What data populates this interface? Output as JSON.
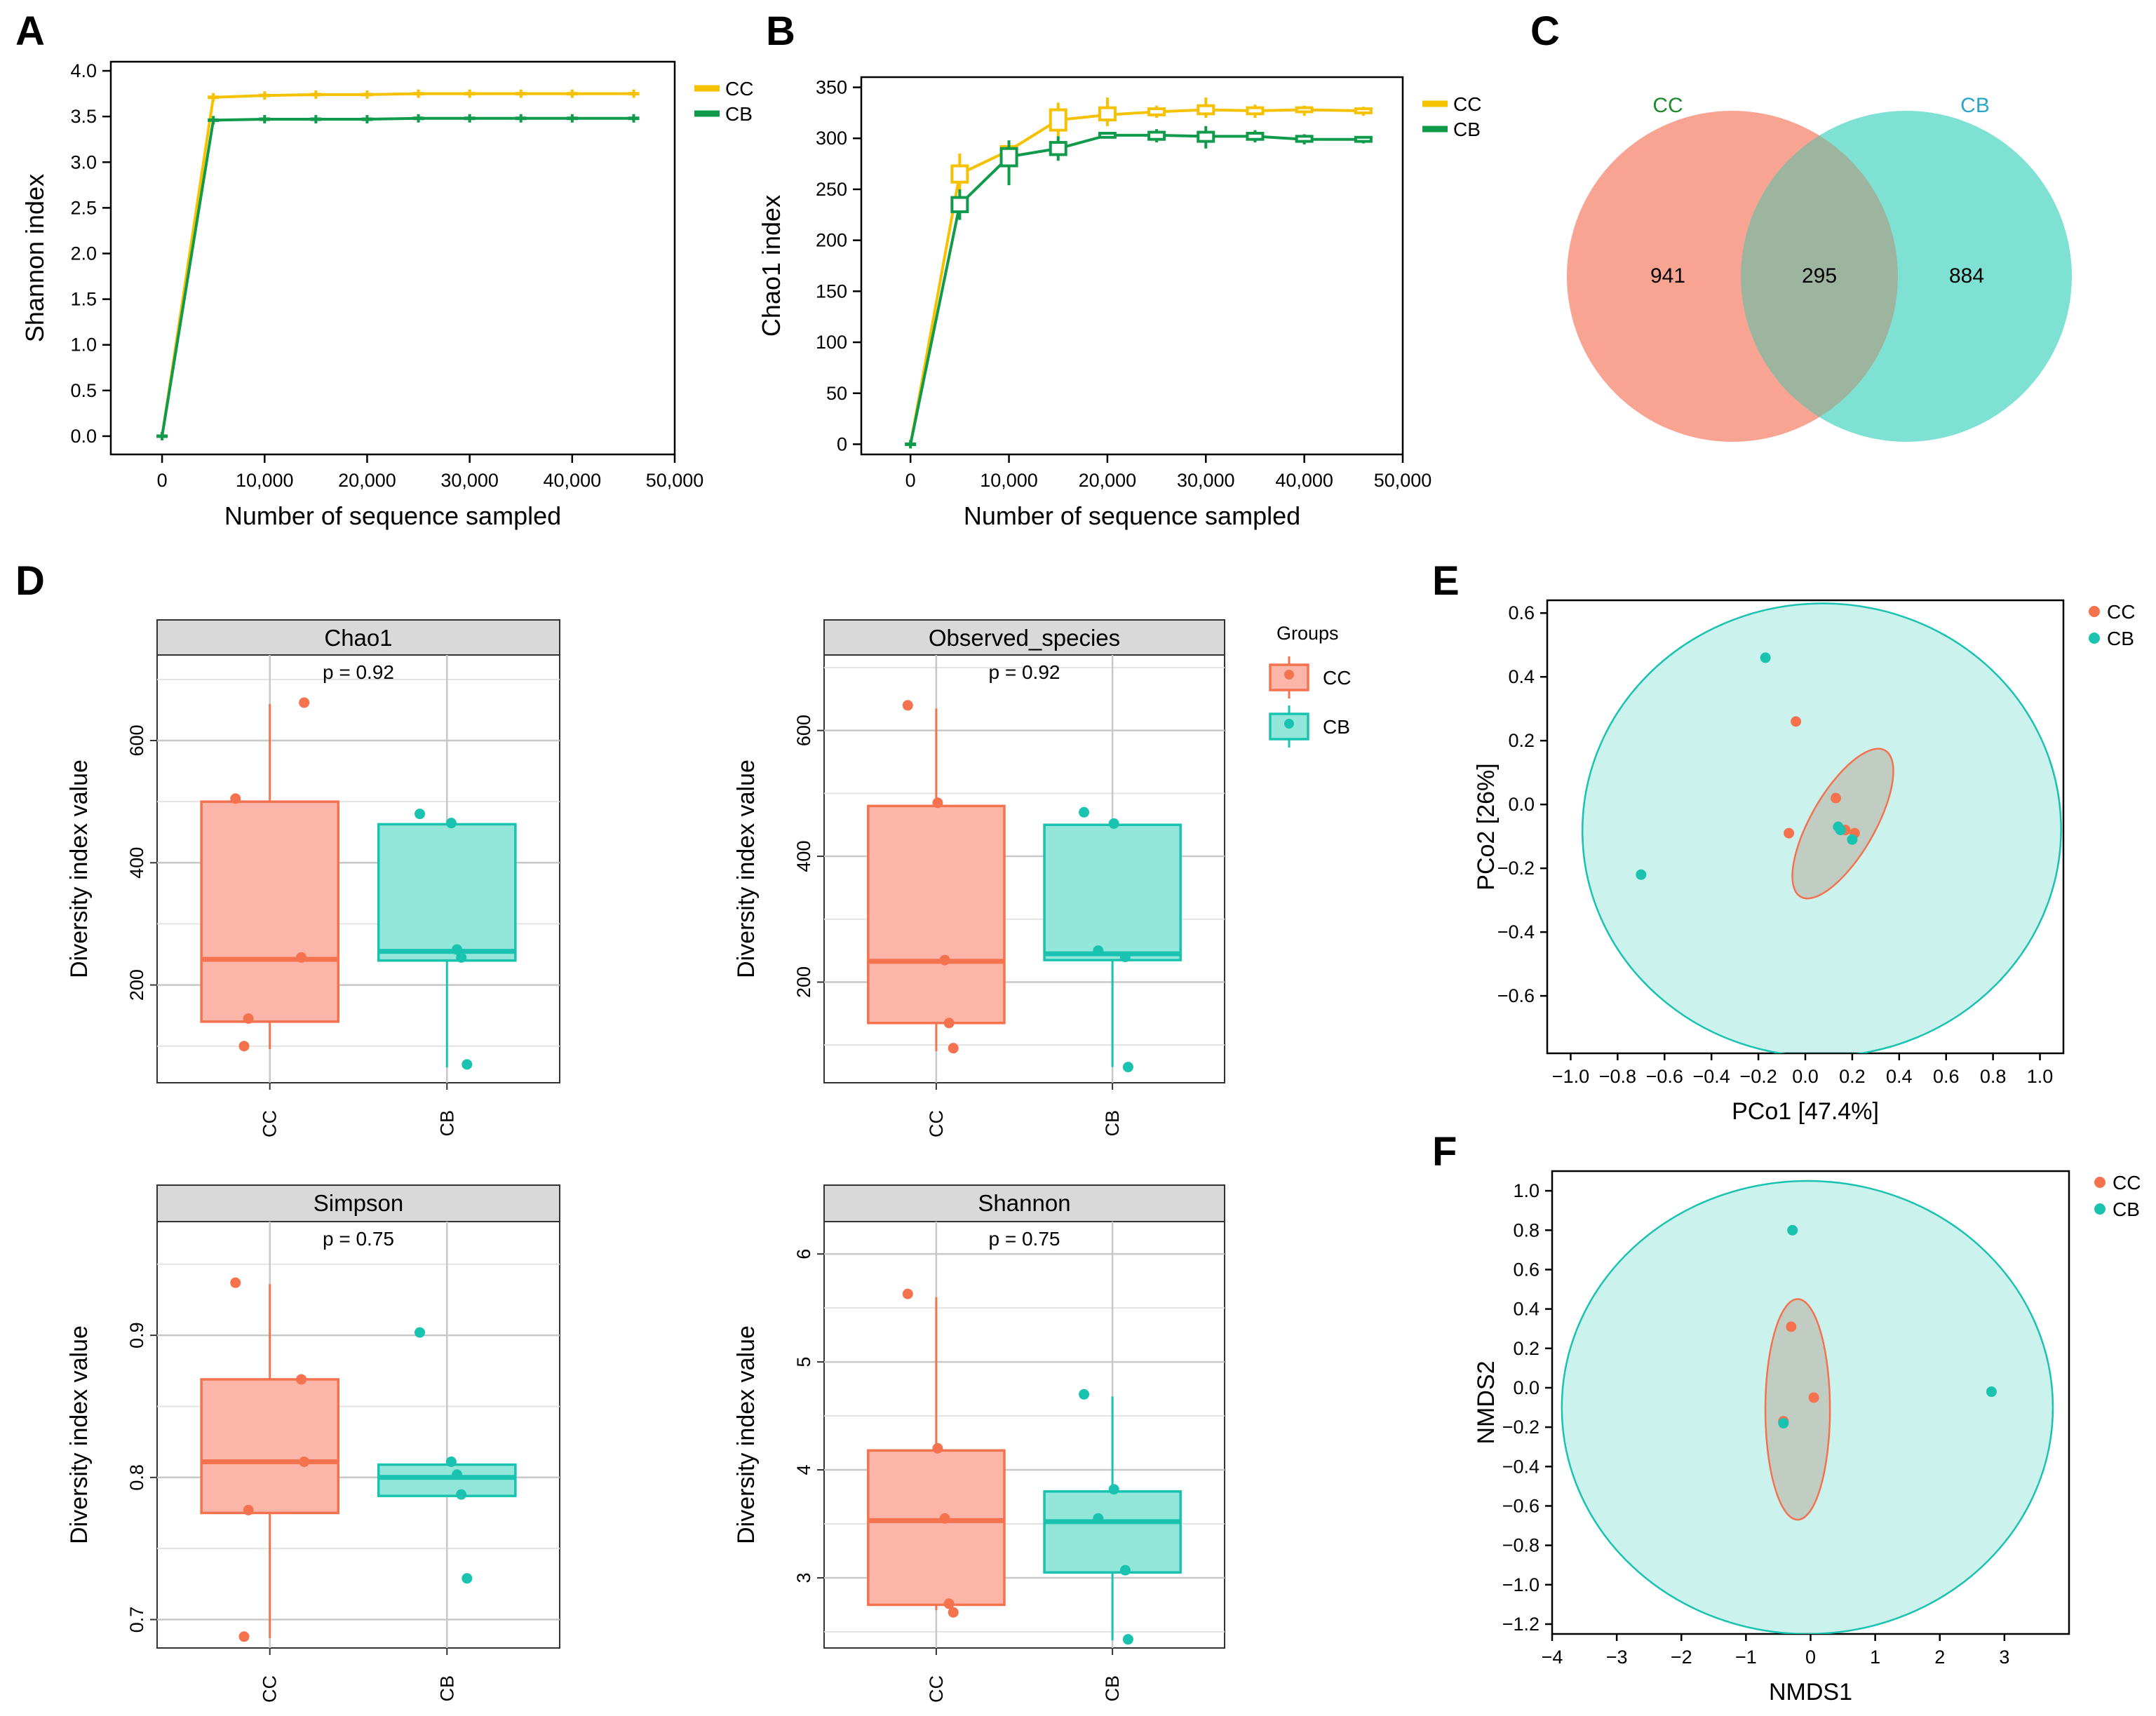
{
  "colors": {
    "cc_line": "#F5C100",
    "cb_line": "#109A4C",
    "cc_point": "#F4724E",
    "cb_point": "#19C3B0",
    "cc_box_fill": "#FCB5A9",
    "cb_box_fill": "#93E6DA",
    "venn_cc": "#F9A392",
    "venn_cb": "#7FE1D4",
    "venn_overlap": "#9DB59F",
    "strip": "#D9D9D9",
    "grid": "#C8C8C8"
  },
  "panel_labels": {
    "a": "A",
    "b": "B",
    "c": "C",
    "d": "D",
    "e": "E",
    "f": "F"
  },
  "chart_data": [
    {
      "id": "A",
      "type": "line",
      "title": "",
      "xlabel": "Number of sequence sampled",
      "ylabel": "Shannon index",
      "xlim": [
        -5000,
        50000
      ],
      "ylim": [
        -0.2,
        4.1
      ],
      "xticks": [
        0,
        10000,
        20000,
        30000,
        40000,
        50000
      ],
      "xticklabels": [
        "0",
        "10,000",
        "20,000",
        "30,000",
        "40,000",
        "50,000"
      ],
      "yticks": [
        0,
        0.5,
        1,
        1.5,
        2,
        2.5,
        3,
        3.5,
        4
      ],
      "yticklabels": [
        "0.0",
        "0.5",
        "1.0",
        "1.5",
        "2.0",
        "2.5",
        "3.0",
        "3.5",
        "4.0"
      ],
      "legend": "right-top",
      "series": [
        {
          "name": "CC",
          "color_key": "cc_line",
          "x": [
            0,
            5000,
            10000,
            15000,
            20000,
            25000,
            30000,
            35000,
            40000,
            46000
          ],
          "y": [
            0,
            3.71,
            3.73,
            3.74,
            3.74,
            3.75,
            3.75,
            3.75,
            3.75,
            3.75
          ]
        },
        {
          "name": "CB",
          "color_key": "cb_line",
          "x": [
            0,
            5000,
            10000,
            15000,
            20000,
            25000,
            30000,
            35000,
            40000,
            46000
          ],
          "y": [
            0,
            3.46,
            3.47,
            3.47,
            3.47,
            3.48,
            3.48,
            3.48,
            3.48,
            3.48
          ]
        }
      ]
    },
    {
      "id": "B",
      "type": "line",
      "title": "",
      "xlabel": "Number of sequence sampled",
      "ylabel": "Chao1 index",
      "xlim": [
        -5000,
        50000
      ],
      "ylim": [
        -10,
        360
      ],
      "xticks": [
        0,
        10000,
        20000,
        30000,
        40000,
        50000
      ],
      "xticklabels": [
        "0",
        "10,000",
        "20,000",
        "30,000",
        "40,000",
        "50,000"
      ],
      "yticks": [
        0,
        50,
        100,
        150,
        200,
        250,
        300,
        350
      ],
      "yticklabels": [
        "0",
        "50",
        "100",
        "150",
        "200",
        "250",
        "300",
        "350"
      ],
      "legend": "right-top",
      "series": [
        {
          "name": "CC",
          "color_key": "cc_line",
          "x": [
            0,
            5000,
            10000,
            15000,
            20000,
            25000,
            30000,
            35000,
            40000,
            46000
          ],
          "y": [
            0,
            265,
            288,
            318,
            323,
            326,
            328,
            327,
            328,
            327
          ],
          "q1": [
            0,
            257,
            284,
            308,
            318,
            323,
            324,
            324,
            326,
            325
          ],
          "q3": [
            0,
            273,
            292,
            328,
            330,
            329,
            332,
            330,
            330,
            329
          ],
          "lo": [
            0,
            248,
            280,
            302,
            312,
            320,
            320,
            320,
            322,
            322
          ],
          "hi": [
            0,
            285,
            297,
            335,
            340,
            332,
            340,
            333,
            332,
            331
          ]
        },
        {
          "name": "CB",
          "color_key": "cb_line",
          "x": [
            0,
            5000,
            10000,
            15000,
            20000,
            25000,
            30000,
            35000,
            40000,
            46000
          ],
          "y": [
            0,
            235,
            282,
            290,
            303,
            303,
            302,
            302,
            299,
            299
          ],
          "q1": [
            0,
            228,
            273,
            284,
            301,
            299,
            297,
            299,
            297,
            297
          ],
          "q3": [
            0,
            242,
            290,
            296,
            305,
            306,
            306,
            305,
            302,
            301
          ],
          "lo": [
            0,
            220,
            254,
            278,
            300,
            296,
            290,
            296,
            294,
            295
          ],
          "hi": [
            0,
            250,
            298,
            302,
            306,
            309,
            312,
            308,
            304,
            302
          ]
        }
      ]
    },
    {
      "id": "C",
      "type": "venn",
      "sets": [
        {
          "name": "CC",
          "unique": 941,
          "color_key": "venn_cc",
          "label_color": "#1E8A2E"
        },
        {
          "name": "CB",
          "unique": 884,
          "color_key": "venn_cb",
          "label_color": "#2AA6C8"
        }
      ],
      "intersection": 295
    },
    {
      "id": "D",
      "type": "box",
      "ylabel": "Diversity index value",
      "categories": [
        "CC",
        "CB"
      ],
      "legend": {
        "title": "Groups",
        "items": [
          "CC",
          "CB"
        ]
      },
      "facets": [
        {
          "title": "Chao1",
          "p": "p = 0.92",
          "ylim": [
            40,
            740
          ],
          "yticks": [
            200,
            400,
            600
          ],
          "yticklabels": [
            "200",
            "400",
            "600"
          ],
          "groups": [
            {
              "name": "CC",
              "min": 95,
              "q1": 140,
              "median": 242,
              "q3": 500,
              "max": 660,
              "points": [
                505,
                662,
                245,
                145,
                100
              ]
            },
            {
              "name": "CB",
              "min": 65,
              "q1": 240,
              "median": 255,
              "q3": 463,
              "max": 465,
              "points": [
                480,
                465,
                258,
                245,
                70
              ]
            }
          ]
        },
        {
          "title": "Observed_species",
          "p": "p = 0.92",
          "ylim": [
            40,
            720
          ],
          "yticks": [
            200,
            400,
            600
          ],
          "yticklabels": [
            "200",
            "400",
            "600"
          ],
          "groups": [
            {
              "name": "CC",
              "min": 90,
              "q1": 135,
              "median": 233,
              "q3": 480,
              "max": 635,
              "points": [
                640,
                485,
                235,
                135,
                95
              ]
            },
            {
              "name": "CB",
              "min": 65,
              "q1": 235,
              "median": 245,
              "q3": 450,
              "max": 452,
              "points": [
                470,
                452,
                250,
                240,
                65
              ]
            }
          ]
        },
        {
          "title": "Simpson",
          "p": "p = 0.75",
          "ylim": [
            0.68,
            0.98
          ],
          "yticks": [
            0.7,
            0.8,
            0.9
          ],
          "yticklabels": [
            "0.7",
            "0.8",
            "0.9"
          ],
          "groups": [
            {
              "name": "CC",
              "min": 0.687,
              "q1": 0.775,
              "median": 0.811,
              "q3": 0.869,
              "max": 0.936,
              "points": [
                0.937,
                0.811,
                0.869,
                0.777,
                0.688
              ]
            },
            {
              "name": "CB",
              "min": 0.787,
              "q1": 0.787,
              "median": 0.8,
              "q3": 0.809,
              "max": 0.809,
              "points": [
                0.902,
                0.811,
                0.802,
                0.788,
                0.729
              ]
            }
          ]
        },
        {
          "title": "Shannon",
          "p": "p = 0.75",
          "ylim": [
            2.35,
            6.3
          ],
          "yticks": [
            3,
            4,
            5,
            6
          ],
          "yticklabels": [
            "3",
            "4",
            "5",
            "6"
          ],
          "groups": [
            {
              "name": "CC",
              "min": 2.7,
              "q1": 2.75,
              "median": 3.53,
              "q3": 4.18,
              "max": 5.6,
              "points": [
                5.63,
                4.2,
                3.55,
                2.76,
                2.68
              ]
            },
            {
              "name": "CB",
              "min": 2.42,
              "q1": 3.05,
              "median": 3.52,
              "q3": 3.8,
              "max": 4.68,
              "points": [
                4.7,
                3.82,
                3.55,
                3.07,
                2.43
              ]
            }
          ]
        }
      ]
    },
    {
      "id": "E",
      "type": "scatter",
      "xlabel": "PCo1 [47.4%]",
      "ylabel": "PCo2 [26%]",
      "xlim": [
        -1.1,
        1.1
      ],
      "ylim": [
        -0.78,
        0.64
      ],
      "xticks": [
        -1.0,
        -0.8,
        -0.6,
        -0.4,
        -0.2,
        0,
        0.2,
        0.4,
        0.6,
        0.8,
        1.0
      ],
      "xticklabels": [
        "−1.0",
        "−0.8",
        "−0.6",
        "−0.4",
        "−0.2",
        "0.0",
        "0.2",
        "0.4",
        "0.6",
        "0.8",
        "1.0"
      ],
      "yticks": [
        -0.6,
        -0.4,
        -0.2,
        0,
        0.2,
        0.4,
        0.6
      ],
      "yticklabels": [
        "−0.6",
        "−0.4",
        "−0.2",
        "0.0",
        "0.2",
        "0.4",
        "0.6"
      ],
      "legend": "right-top",
      "series": [
        {
          "name": "CC",
          "color_key": "cc_point",
          "x": [
            -0.04,
            0.13,
            0.17,
            0.21,
            -0.07
          ],
          "y": [
            0.26,
            0.02,
            -0.08,
            -0.09,
            -0.09
          ],
          "ellipse": {
            "cx": 0.16,
            "cy": -0.06,
            "rx": 0.36,
            "ry": 0.1,
            "angle": -60
          }
        },
        {
          "name": "CB",
          "color_key": "cb_point",
          "x": [
            -0.17,
            0.14,
            0.2,
            -0.7,
            0.15
          ],
          "y": [
            0.46,
            -0.07,
            -0.11,
            -0.22,
            -0.08
          ],
          "ellipse": {
            "cx": 0.07,
            "cy": -0.08,
            "rx": 1.02,
            "ry": 0.71,
            "angle": -2
          }
        }
      ]
    },
    {
      "id": "F",
      "type": "scatter",
      "xlabel": "NMDS1",
      "ylabel": "NMDS2",
      "xlim": [
        -4,
        4
      ],
      "ylim": [
        -1.25,
        1.1
      ],
      "xticks": [
        -4,
        -3,
        -2,
        -1,
        0,
        1,
        2,
        3
      ],
      "xticklabels": [
        "−4",
        "−3",
        "−2",
        "−1",
        "0",
        "1",
        "2",
        "3"
      ],
      "yticks": [
        -1.2,
        -1.0,
        -0.8,
        -0.6,
        -0.4,
        -0.2,
        0,
        0.2,
        0.4,
        0.6,
        0.8,
        1.0
      ],
      "yticklabels": [
        "−1.2",
        "−1.0",
        "−0.8",
        "−0.6",
        "−0.4",
        "−0.2",
        "0.0",
        "0.2",
        "0.4",
        "0.6",
        "0.8",
        "1.0"
      ],
      "legend": "right-top",
      "series": [
        {
          "name": "CC",
          "color_key": "cc_point",
          "x": [
            -0.3,
            0.05,
            -0.42
          ],
          "y": [
            0.31,
            -0.05,
            -0.17
          ],
          "ellipse": {
            "cx": -0.2,
            "cy": -0.11,
            "rx": 0.5,
            "ry": 0.56,
            "angle": 0
          }
        },
        {
          "name": "CB",
          "color_key": "cb_point",
          "x": [
            -0.28,
            2.8,
            -0.42
          ],
          "y": [
            0.8,
            -0.02,
            -0.18
          ],
          "ellipse": {
            "cx": -0.05,
            "cy": -0.1,
            "rx": 3.8,
            "ry": 1.15,
            "angle": 0
          }
        }
      ]
    }
  ]
}
